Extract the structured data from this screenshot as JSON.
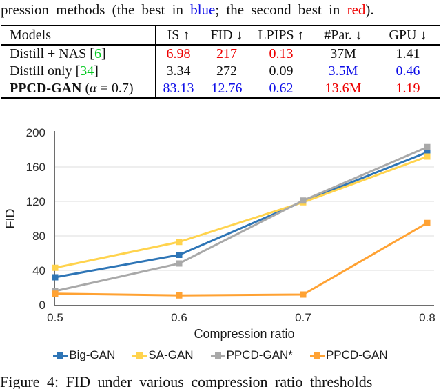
{
  "top_caption": {
    "part1": "pression methods (the best in ",
    "blue_word": "blue",
    "part2": "; the second best in ",
    "red_word": "red",
    "part3": ")."
  },
  "table": {
    "headers": [
      "Models",
      "IS ↑",
      "FID ↓",
      "LPIPS ↑",
      "#Par. ↓",
      "GPU ↓"
    ],
    "rows": [
      {
        "model": [
          {
            "t": "Distill + NAS [",
            "c": "k"
          },
          {
            "t": "6",
            "c": "green"
          },
          {
            "t": "]",
            "c": "k"
          }
        ],
        "cells": [
          {
            "t": "6.98",
            "c": "red"
          },
          {
            "t": "217",
            "c": "red"
          },
          {
            "t": "0.13",
            "c": "red"
          },
          {
            "t": "37M",
            "c": "k"
          },
          {
            "t": "1.41",
            "c": "k"
          }
        ]
      },
      {
        "model": [
          {
            "t": "Distill only [",
            "c": "k"
          },
          {
            "t": "34",
            "c": "green"
          },
          {
            "t": "]",
            "c": "k"
          }
        ],
        "cells": [
          {
            "t": "3.34",
            "c": "k"
          },
          {
            "t": "272",
            "c": "k"
          },
          {
            "t": "0.09",
            "c": "k"
          },
          {
            "t": "3.5M",
            "c": "blue"
          },
          {
            "t": "0.46",
            "c": "blue"
          }
        ]
      },
      {
        "model": [
          {
            "t": "PPCD-GAN",
            "c": "k",
            "b": true
          },
          {
            "t": " (",
            "c": "k"
          },
          {
            "t": "α",
            "c": "k",
            "i": true
          },
          {
            "t": " = 0.7)",
            "c": "k"
          }
        ],
        "cells": [
          {
            "t": "83.13",
            "c": "blue"
          },
          {
            "t": "12.76",
            "c": "blue"
          },
          {
            "t": "0.62",
            "c": "blue"
          },
          {
            "t": "13.6M",
            "c": "red"
          },
          {
            "t": "1.19",
            "c": "red"
          }
        ]
      }
    ]
  },
  "chart_data": {
    "type": "line",
    "title": "",
    "xlabel": "Compression ratio",
    "ylabel": "FID",
    "x": [
      0.5,
      0.6,
      0.7,
      0.8
    ],
    "xticks": [
      "0.5",
      "0.6",
      "0.7",
      "0.8"
    ],
    "yticks": [
      0,
      40,
      80,
      120,
      160,
      200
    ],
    "ylim": [
      0,
      200
    ],
    "grid": true,
    "legend_position": "bottom",
    "series": [
      {
        "name": "Big-GAN",
        "color": "#2e75b6",
        "values": [
          32,
          58,
          120,
          177
        ]
      },
      {
        "name": "SA-GAN",
        "color": "#ffd34d",
        "values": [
          43,
          73,
          119,
          172
        ]
      },
      {
        "name": "PPCD-GAN*",
        "color": "#a9a9a9",
        "values": [
          16,
          48,
          121,
          183
        ]
      },
      {
        "name": "PPCD-GAN",
        "color": "#ffa233",
        "values": [
          13,
          11,
          12,
          95
        ]
      }
    ]
  },
  "bottom_caption": "Figure 4: FID under various compression ratio thresholds"
}
